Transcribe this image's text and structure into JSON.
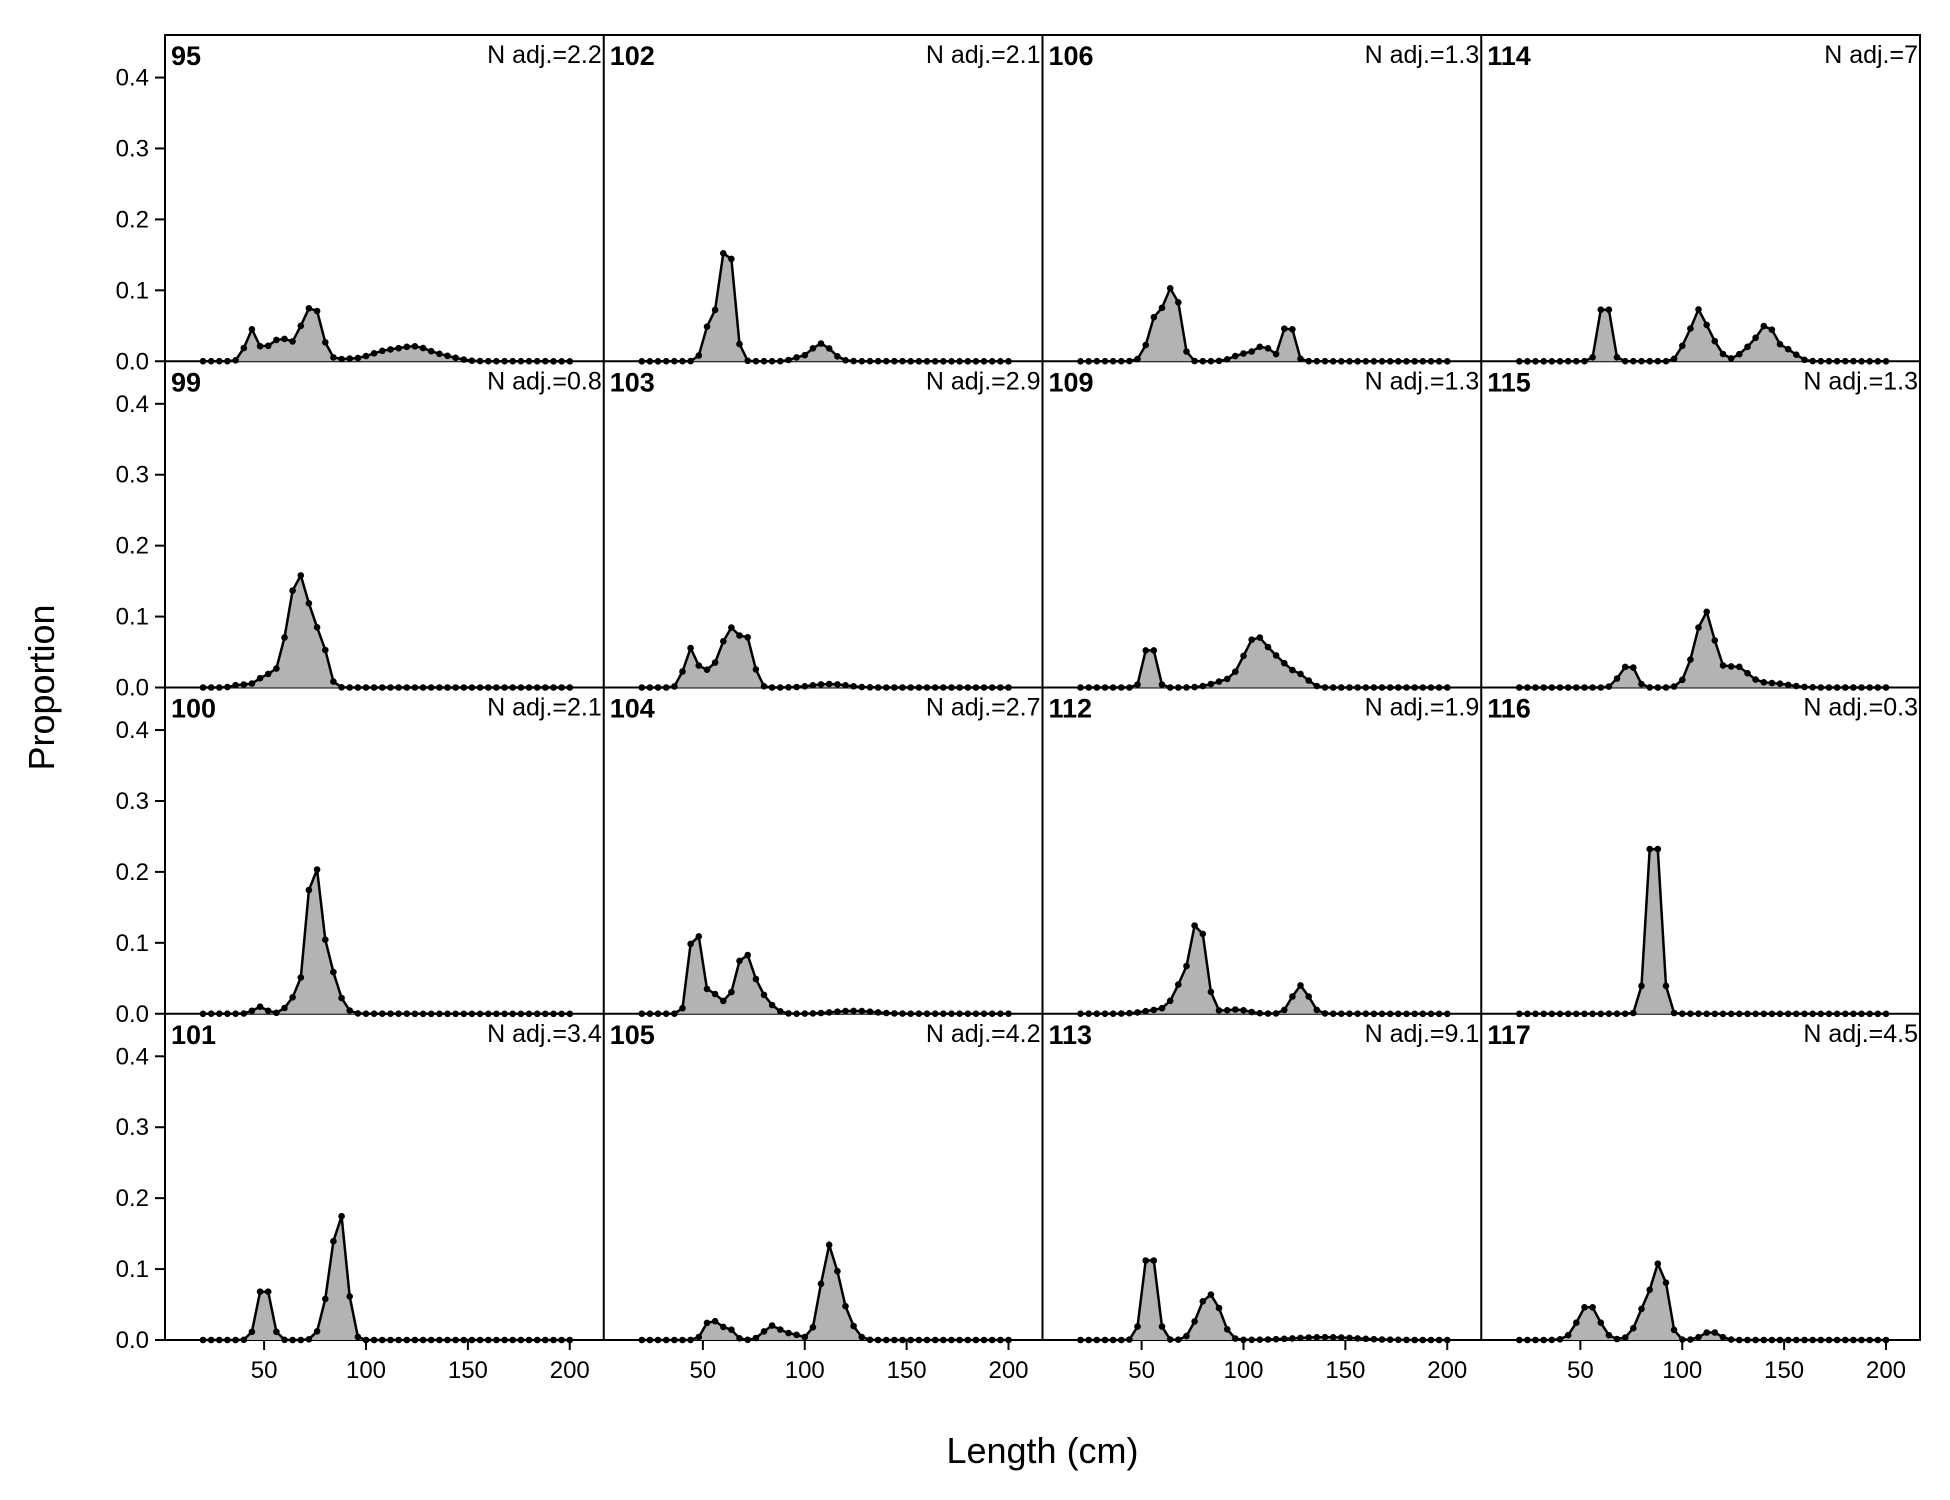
{
  "chart_data": {
    "type": "area",
    "layout": "4x4 small multiples, columns read top-to-bottom",
    "xlabel": "Length (cm)",
    "ylabel": "Proportion",
    "xlim": [
      0,
      210
    ],
    "ylim": [
      0,
      0.46
    ],
    "yticks": [
      "0.0",
      "0.1",
      "0.2",
      "0.3",
      "0.4"
    ],
    "xticks": [
      "50",
      "100",
      "150",
      "200"
    ],
    "bin_start": 20,
    "bin_width": 4,
    "fill_color": "#b3b3b3",
    "line_color": "#000000",
    "panels": [
      {
        "id": "95",
        "nadj": "N adj.=2.2",
        "peaks": [
          [
            44,
            0.045,
            3
          ],
          [
            52,
            0.02,
            2
          ],
          [
            58,
            0.045,
            2
          ],
          [
            66,
            0.03,
            3
          ],
          [
            74,
            0.08,
            4
          ],
          [
            90,
            0.003,
            6
          ],
          [
            108,
            0.012,
            7
          ],
          [
            124,
            0.02,
            8
          ],
          [
            140,
            0.005,
            6
          ]
        ]
      },
      {
        "id": "99",
        "nadj": "N adj.=0.8",
        "peaks": [
          [
            38,
            0.004,
            3
          ],
          [
            52,
            0.018,
            5
          ],
          [
            64,
            0.1,
            4
          ],
          [
            70,
            0.11,
            4
          ],
          [
            78,
            0.06,
            3
          ]
        ]
      },
      {
        "id": "100",
        "nadj": "N adj.=2.1",
        "peaks": [
          [
            48,
            0.01,
            3
          ],
          [
            66,
            0.025,
            4
          ],
          [
            74,
            0.18,
            3
          ],
          [
            80,
            0.08,
            5
          ]
        ]
      },
      {
        "id": "101",
        "nadj": "N adj.=3.4",
        "peaks": [
          [
            50,
            0.085,
            3
          ],
          [
            84,
            0.09,
            4
          ],
          [
            88,
            0.12,
            3
          ]
        ]
      },
      {
        "id": "102",
        "nadj": "N adj.=2.1",
        "peaks": [
          [
            54,
            0.06,
            3
          ],
          [
            62,
            0.18,
            3
          ],
          [
            96,
            0.004,
            3
          ],
          [
            108,
            0.025,
            5
          ]
        ]
      },
      {
        "id": "103",
        "nadj": "N adj.=2.9",
        "peaks": [
          [
            44,
            0.055,
            3
          ],
          [
            52,
            0.02,
            3
          ],
          [
            58,
            0.02,
            3
          ],
          [
            64,
            0.08,
            4
          ],
          [
            72,
            0.06,
            3
          ],
          [
            112,
            0.005,
            8
          ]
        ]
      },
      {
        "id": "104",
        "nadj": "N adj.=2.7",
        "peaks": [
          [
            46,
            0.13,
            2.5
          ],
          [
            54,
            0.03,
            5
          ],
          [
            70,
            0.08,
            4
          ],
          [
            78,
            0.025,
            5
          ],
          [
            124,
            0.004,
            10
          ]
        ]
      },
      {
        "id": "105",
        "nadj": "N adj.=4.2",
        "peaks": [
          [
            54,
            0.03,
            3
          ],
          [
            62,
            0.018,
            3
          ],
          [
            84,
            0.02,
            4
          ],
          [
            94,
            0.008,
            4
          ],
          [
            112,
            0.13,
            4
          ],
          [
            120,
            0.03,
            4
          ]
        ]
      },
      {
        "id": "106",
        "nadj": "N adj.=1.3",
        "peaks": [
          [
            58,
            0.07,
            4
          ],
          [
            66,
            0.1,
            3
          ],
          [
            100,
            0.01,
            5
          ],
          [
            110,
            0.02,
            4
          ],
          [
            122,
            0.062,
            2.5
          ]
        ]
      },
      {
        "id": "109",
        "nadj": "N adj.=1.3",
        "peaks": [
          [
            54,
            0.072,
            2.5
          ],
          [
            90,
            0.008,
            6
          ],
          [
            106,
            0.07,
            6
          ],
          [
            118,
            0.03,
            5
          ],
          [
            128,
            0.015,
            4
          ]
        ]
      },
      {
        "id": "112",
        "nadj": "N adj.=1.9",
        "peaks": [
          [
            60,
            0.006,
            8
          ],
          [
            70,
            0.04,
            4
          ],
          [
            78,
            0.13,
            3.5
          ],
          [
            96,
            0.006,
            6
          ],
          [
            128,
            0.04,
            4
          ]
        ]
      },
      {
        "id": "113",
        "nadj": "N adj.=9.1",
        "peaks": [
          [
            54,
            0.14,
            3
          ],
          [
            80,
            0.04,
            4
          ],
          [
            86,
            0.045,
            4
          ],
          [
            140,
            0.004,
            15
          ]
        ]
      },
      {
        "id": "114",
        "nadj": "N adj.=7",
        "peaks": [
          [
            62,
            0.1,
            2.5
          ],
          [
            102,
            0.025,
            3
          ],
          [
            108,
            0.06,
            3
          ],
          [
            114,
            0.03,
            4
          ],
          [
            134,
            0.02,
            5
          ],
          [
            142,
            0.045,
            4
          ],
          [
            152,
            0.015,
            4
          ]
        ]
      },
      {
        "id": "115",
        "nadj": "N adj.=1.3",
        "peaks": [
          [
            68,
            0.008,
            2
          ],
          [
            74,
            0.035,
            3
          ],
          [
            106,
            0.03,
            4
          ],
          [
            112,
            0.095,
            4
          ],
          [
            126,
            0.03,
            6
          ],
          [
            144,
            0.006,
            8
          ]
        ]
      },
      {
        "id": "116",
        "nadj": "N adj.=0.3",
        "peaks": [
          [
            86,
            0.29,
            3
          ]
        ]
      },
      {
        "id": "117",
        "nadj": "N adj.=4.5",
        "peaks": [
          [
            54,
            0.05,
            5
          ],
          [
            84,
            0.06,
            5
          ],
          [
            90,
            0.08,
            3
          ],
          [
            114,
            0.012,
            4
          ]
        ]
      }
    ]
  }
}
